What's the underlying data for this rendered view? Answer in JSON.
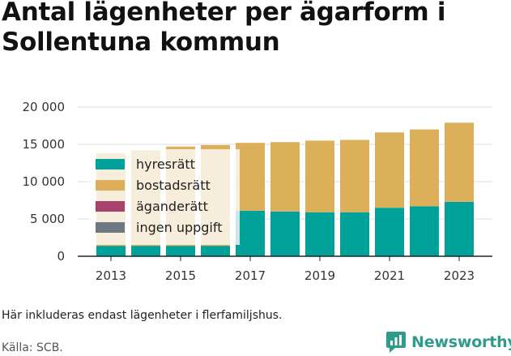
{
  "title": "Antal lägenheter per ägarform i Sollentuna kommun",
  "footnote": "Här inkluderas endast lägenheter i flerfamiljshus.",
  "source": "Källa: SCB.",
  "brand": {
    "name": "Newsworthy",
    "icon": "newsworthy-logo-icon",
    "color": "#2e9c8c"
  },
  "chart_data": {
    "type": "bar",
    "stacked": true,
    "title": "Antal lägenheter per ägarform i Sollentuna kommun",
    "xlabel": "",
    "ylabel": "",
    "categories": [
      "2013",
      "2014",
      "2015",
      "2016",
      "2017",
      "2018",
      "2019",
      "2020",
      "2021",
      "2022",
      "2023"
    ],
    "x_tick_labels": [
      "2013",
      "2015",
      "2017",
      "2019",
      "2021",
      "2023"
    ],
    "ylim": [
      0,
      20000
    ],
    "y_ticks": [
      0,
      5000,
      10000,
      15000,
      20000
    ],
    "y_tick_labels": [
      "0",
      "5 000",
      "10 000",
      "15 000",
      "20 000"
    ],
    "grid": true,
    "legend_position": "top-left",
    "series": [
      {
        "name": "hyresrätt",
        "color": "#00a198",
        "values": [
          1400,
          1400,
          1400,
          1400,
          6100,
          6000,
          5900,
          5900,
          6500,
          6700,
          7300
        ]
      },
      {
        "name": "bostadsrätt",
        "color": "#dcaf5a",
        "values": [
          12400,
          12800,
          13300,
          13500,
          9100,
          9300,
          9600,
          9700,
          10100,
          10300,
          10600
        ]
      },
      {
        "name": "äganderätt",
        "color": "#a6426b",
        "values": [
          0,
          0,
          0,
          0,
          0,
          0,
          0,
          0,
          0,
          0,
          0
        ]
      },
      {
        "name": "ingen uppgift",
        "color": "#6e7880",
        "values": [
          0,
          0,
          0,
          0,
          0,
          0,
          0,
          0,
          0,
          0,
          0
        ]
      }
    ]
  }
}
